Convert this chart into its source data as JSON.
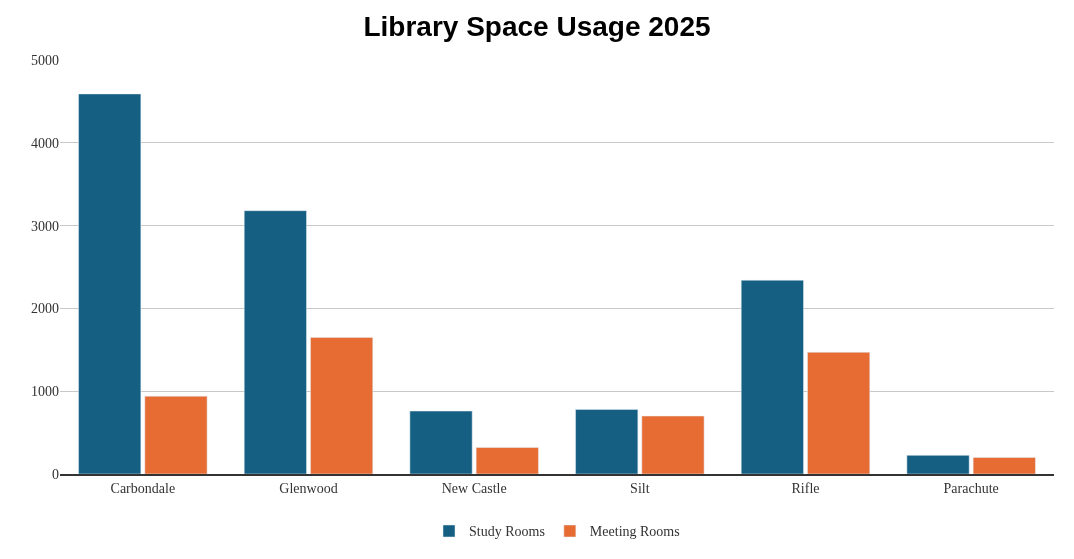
{
  "chart_data": {
    "type": "bar",
    "title": "Library Space Usage 2025",
    "categories": [
      "Carbondale",
      "Glenwood",
      "New Castle",
      "Silt",
      "Rifle",
      "Parachute"
    ],
    "series": [
      {
        "name": "Study Rooms",
        "color": "#155f83",
        "values": [
          4590,
          3180,
          760,
          780,
          2340,
          225
        ]
      },
      {
        "name": "Meeting Rooms",
        "color": "#e66c33",
        "values": [
          940,
          1650,
          320,
          700,
          1470,
          200
        ]
      }
    ],
    "ylim": [
      0,
      5000
    ],
    "yticks": [
      0,
      1000,
      2000,
      3000,
      4000,
      5000
    ],
    "grid": "y",
    "legend": "bottom"
  }
}
